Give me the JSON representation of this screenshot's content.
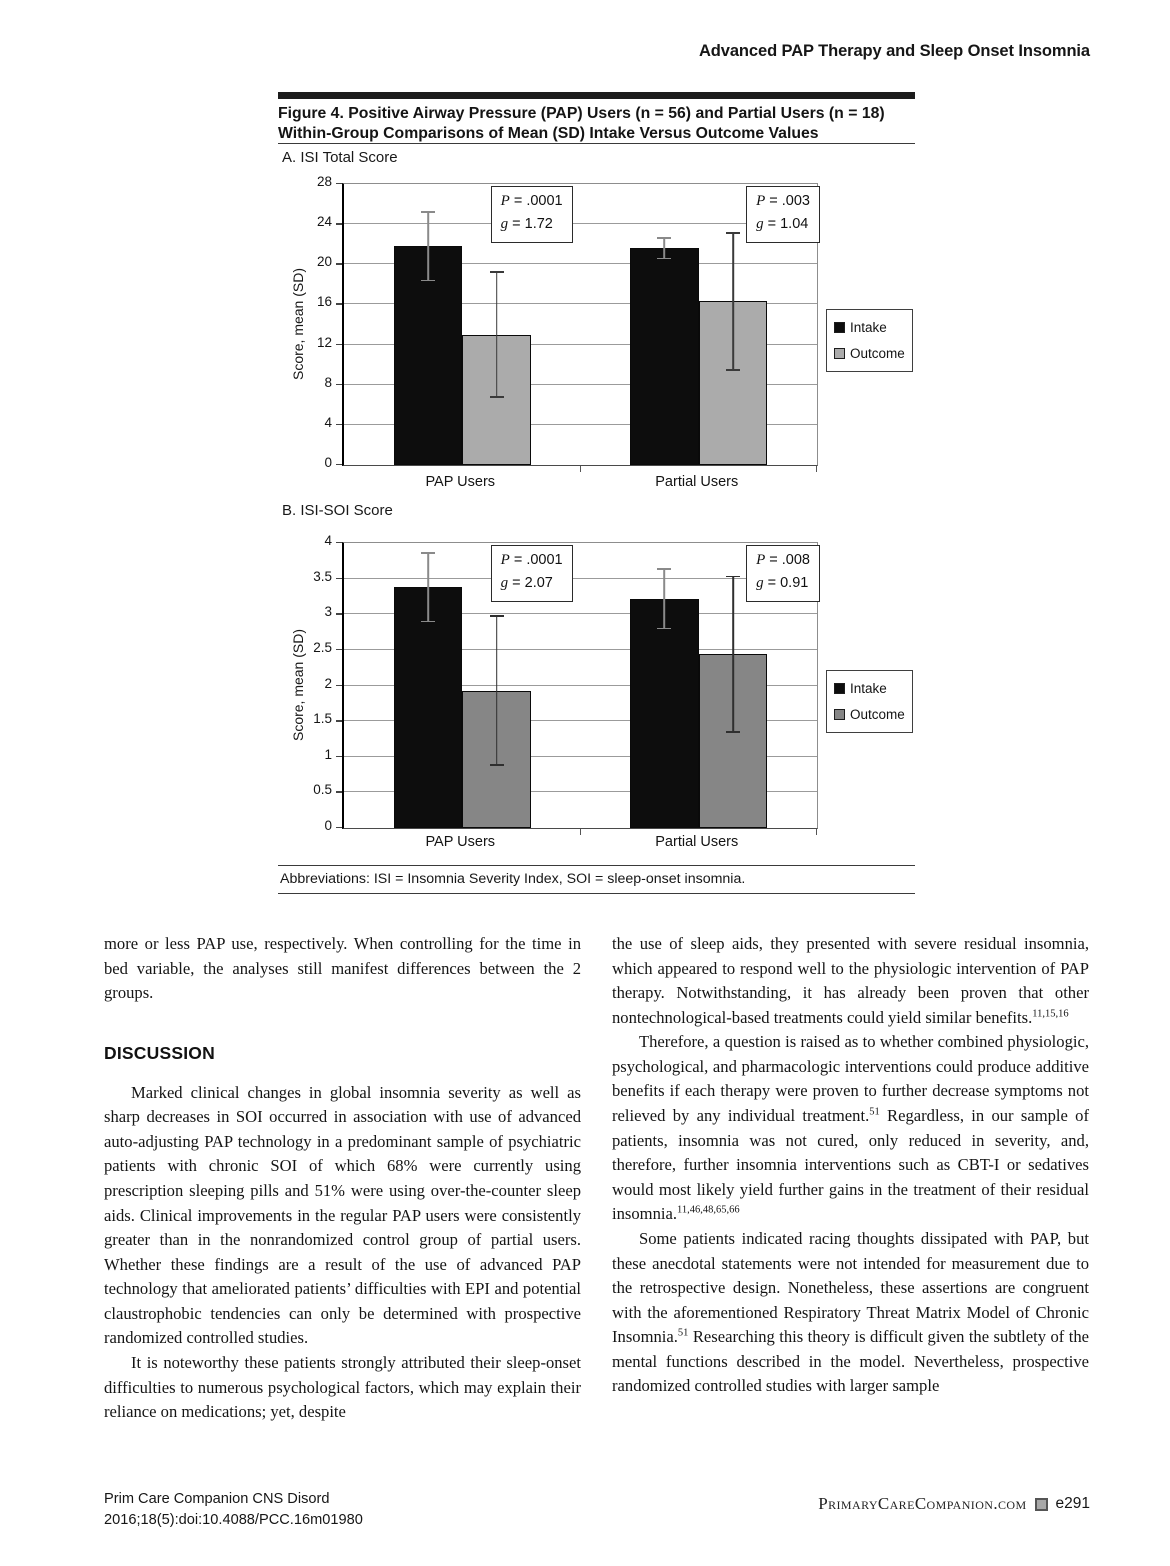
{
  "page": {
    "running_head": "Advanced PAP Therapy and Sleep Onset Insomnia"
  },
  "figure": {
    "title_line1": "Figure 4. Positive Airway Pressure (PAP) Users (n = 56) and Partial Users (n = 18)",
    "title_line2": "Within-Group Comparisons of Mean (SD) Intake Versus Outcome Values",
    "abbreviations": "Abbreviations: ISI = Insomnia Severity Index, SOI = sleep-onset insomnia."
  },
  "chart_data": [
    {
      "type": "bar",
      "panel_label": "A. ISI Total Score",
      "categories": [
        "PAP Users",
        "Partial Users"
      ],
      "series": [
        {
          "name": "Intake",
          "color": "#0d0d0d",
          "err_color": "#8a8a8a",
          "values": [
            21.8,
            21.6
          ],
          "sd": [
            3.5,
            1.1
          ]
        },
        {
          "name": "Outcome",
          "color": "#ababab",
          "err_color": "#3a3a3a",
          "values": [
            13.0,
            16.3
          ],
          "sd": [
            6.3,
            6.9
          ]
        }
      ],
      "ylabel": "Score, mean (SD)",
      "ylim": [
        0,
        28
      ],
      "yticks": [
        0,
        4,
        8,
        12,
        16,
        20,
        24,
        28
      ],
      "grid": true,
      "legend_position": "right",
      "annotations": [
        {
          "lines": [
            [
              "P",
              " = .0001"
            ],
            [
              "g",
              " = 1.72"
            ]
          ]
        },
        {
          "lines": [
            [
              "P",
              " = .003"
            ],
            [
              "g",
              " = 1.04"
            ]
          ]
        }
      ]
    },
    {
      "type": "bar",
      "panel_label": "B. ISI-SOI Score",
      "categories": [
        "PAP Users",
        "Partial Users"
      ],
      "series": [
        {
          "name": "Intake",
          "color": "#0d0d0d",
          "err_color": "#8a8a8a",
          "values": [
            3.38,
            3.22
          ],
          "sd": [
            0.49,
            0.43
          ]
        },
        {
          "name": "Outcome",
          "color": "#868686",
          "err_color": "#2f2f2f",
          "values": [
            1.93,
            2.44
          ],
          "sd": [
            1.06,
            1.1
          ]
        }
      ],
      "ylabel": "Score, mean (SD)",
      "ylim": [
        0,
        4
      ],
      "yticks": [
        0,
        0.5,
        1,
        1.5,
        2,
        2.5,
        3,
        3.5,
        4
      ],
      "grid": true,
      "legend_position": "right",
      "annotations": [
        {
          "lines": [
            [
              "P",
              " = .0001"
            ],
            [
              "g",
              " = 2.07"
            ]
          ]
        },
        {
          "lines": [
            [
              "P",
              " = .008"
            ],
            [
              "g",
              " = 0.91"
            ]
          ]
        }
      ]
    }
  ],
  "body": {
    "left_column": {
      "intro_paragraph": "more or less PAP use, respectively. When controlling for the time in bed variable, the analyses still manifest differences between the 2 groups.",
      "heading": "DISCUSSION",
      "paragraphs": [
        "Marked clinical changes in global insomnia severity as well as sharp decreases in SOI occurred in association with use of advanced auto-adjusting PAP technology in a predominant sample of psychiatric patients with chronic SOI of which 68% were currently using prescription sleeping pills and 51% were using over-the-counter sleep aids. Clinical improvements in the regular PAP users were consistently greater than in the nonrandomized control group of partial users. Whether these findings are a result of the use of advanced PAP technology that ameliorated patients’ difficulties with EPI and potential claustrophobic tendencies can only be determined with prospective randomized controlled studies.",
        "It is noteworthy these patients strongly attributed their sleep-onset difficulties to numerous psychological factors, which may explain their reliance on medications; yet, despite"
      ]
    },
    "right_column": {
      "paragraphs": [
        "the use of sleep aids, they presented with severe residual insomnia, which appeared to respond well to the physiologic intervention of PAP therapy. Notwithstanding, it has already been proven that other nontechnological-based treatments could yield similar benefits.^{11,15,16}",
        "Therefore, a question is raised as to whether combined physiologic, psychological, and pharmacologic interventions could produce additive benefits if each therapy were proven to further decrease symptoms not relieved by any individual treatment.^{51} Regardless, in our sample of patients, insomnia was not cured, only reduced in severity, and, therefore, further insomnia interventions such as CBT-I or sedatives would most likely yield further gains in the treatment of their residual insomnia.^{11,46,48,65,66}",
        "Some patients indicated racing thoughts dissipated with PAP, but these anecdotal statements were not intended for measurement due to the retrospective design. Nonetheless, these assertions are congruent with the aforementioned Respiratory Threat Matrix Model of Chronic Insomnia.^{51} Researching this theory is difficult given the subtlety of the mental functions described in the model. Nevertheless, prospective randomized controlled studies with larger sample"
      ]
    }
  },
  "footer": {
    "journal_line1": "Prim Care Companion CNS Disord",
    "journal_line2": "2016;18(5):doi:10.4088/PCC.16m01980",
    "site": "PrimaryCareCompanion.com",
    "page_number": "e291"
  }
}
